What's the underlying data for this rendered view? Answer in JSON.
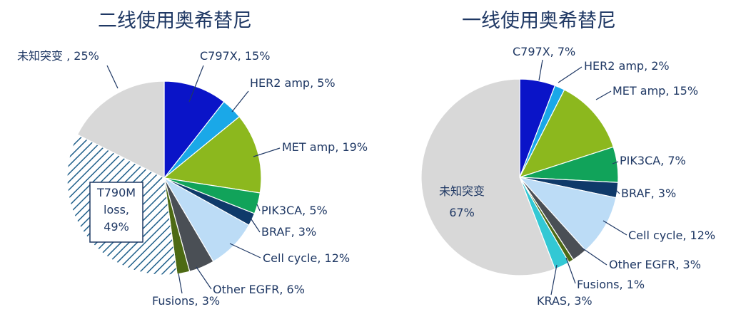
{
  "chart_data": [
    {
      "type": "pie",
      "title": "二线使用奥希替尼",
      "slices": [
        {
          "label": "C797X, 15%",
          "value": 15,
          "color": "#0a14c8"
        },
        {
          "label": "HER2 amp, 5%",
          "value": 5,
          "color": "#1aa8e8"
        },
        {
          "label": "MET amp, 19%",
          "value": 19,
          "color": "#8cb81e"
        },
        {
          "label": "PIK3CA, 5%",
          "value": 5,
          "color": "#11a35a"
        },
        {
          "label": "BRAF, 3%",
          "value": 3,
          "color": "#0f3a6a"
        },
        {
          "label": "Cell cycle, 12%",
          "value": 12,
          "color": "#bcdcf6"
        },
        {
          "label": "Other EGFR, 6%",
          "value": 6,
          "color": "#4a4f55"
        },
        {
          "label": "Fusions, 3%",
          "value": 3,
          "color": "#4d6a14"
        },
        {
          "label": "T790M loss, 49%",
          "lines": [
            "T790M",
            "loss,",
            "49%"
          ],
          "value": 49,
          "color": "#1f5f8a",
          "pattern": "hatch"
        },
        {
          "label": "未知突变 , 25%",
          "value": 25,
          "color": "#d8d8d8"
        }
      ]
    },
    {
      "type": "pie",
      "title": "一线使用奥希替尼",
      "slices": [
        {
          "label": "C797X, 7%",
          "value": 7,
          "color": "#0a14c8"
        },
        {
          "label": "HER2 amp, 2%",
          "value": 2,
          "color": "#1aa8e8"
        },
        {
          "label": "MET amp, 15%",
          "value": 15,
          "color": "#8cb81e"
        },
        {
          "label": "PIK3CA, 7%",
          "value": 7,
          "color": "#11a35a"
        },
        {
          "label": "BRAF, 3%",
          "value": 3,
          "color": "#0f3a6a"
        },
        {
          "label": "Cell cycle, 12%",
          "value": 12,
          "color": "#bcdcf6"
        },
        {
          "label": "Other EGFR, 3%",
          "value": 3,
          "color": "#4a4f55"
        },
        {
          "label": "Fusions, 1%",
          "value": 1,
          "color": "#4d6a14"
        },
        {
          "label": "KRAS, 3%",
          "value": 3,
          "color": "#33c8d4"
        },
        {
          "label": "未知突变 67%",
          "lines": [
            "未知突变",
            "67%"
          ],
          "value": 67,
          "color": "#d8d8d8"
        }
      ]
    }
  ]
}
